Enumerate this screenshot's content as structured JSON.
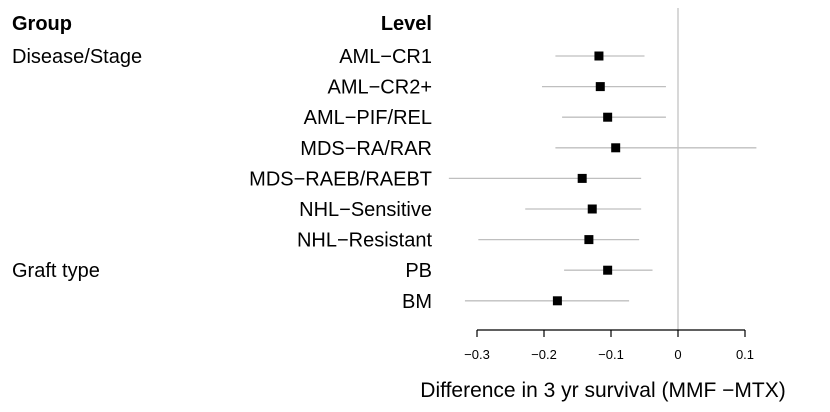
{
  "chart_data": {
    "type": "forest",
    "headers": {
      "group": "Group",
      "level": "Level"
    },
    "rows": [
      {
        "group": "Disease/Stage",
        "level": "AML−CR1",
        "estimate": -0.118,
        "ci_low": -0.183,
        "ci_high": -0.05
      },
      {
        "group": "",
        "level": "AML−CR2+",
        "estimate": -0.116,
        "ci_low": -0.203,
        "ci_high": -0.018
      },
      {
        "group": "",
        "level": "AML−PIF/REL",
        "estimate": -0.105,
        "ci_low": -0.173,
        "ci_high": -0.018
      },
      {
        "group": "",
        "level": "MDS−RA/RAR",
        "estimate": -0.093,
        "ci_low": -0.183,
        "ci_high": 0.117
      },
      {
        "group": "",
        "level": "MDS−RAEB/RAEBT",
        "estimate": -0.143,
        "ci_low": -0.342,
        "ci_high": -0.055
      },
      {
        "group": "",
        "level": "NHL−Sensitive",
        "estimate": -0.128,
        "ci_low": -0.228,
        "ci_high": -0.055
      },
      {
        "group": "",
        "level": "NHL−Resistant",
        "estimate": -0.133,
        "ci_low": -0.298,
        "ci_high": -0.058
      },
      {
        "group": "Graft type",
        "level": "PB",
        "estimate": -0.105,
        "ci_low": -0.17,
        "ci_high": -0.038
      },
      {
        "group": "",
        "level": "BM",
        "estimate": -0.18,
        "ci_low": -0.318,
        "ci_high": -0.073
      }
    ],
    "xlim": [
      -0.3,
      0.1
    ],
    "xticks": [
      -0.3,
      -0.2,
      -0.1,
      0,
      0.1
    ],
    "xtick_labels": [
      "−0.3",
      "−0.2",
      "−0.1",
      "0",
      "0.1"
    ],
    "reference_line": 0,
    "xlabel": "Difference in 3 yr survival (MMF −MTX)",
    "colors": {
      "point": "#000000",
      "ci": "#bfbfbf",
      "reference": "#bfbfbf",
      "axis": "#000000"
    }
  }
}
